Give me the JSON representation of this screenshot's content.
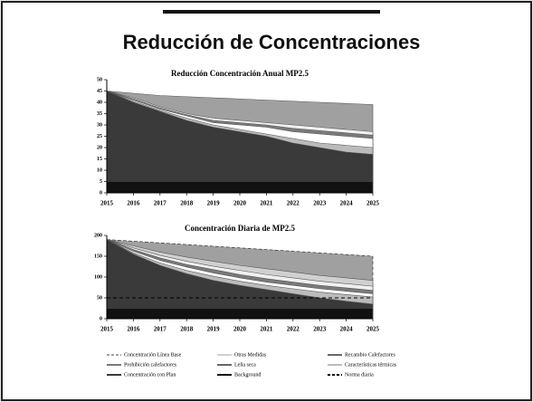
{
  "title": "Reducción de Concentraciones",
  "chart_data": [
    {
      "type": "area",
      "title": "Reducción Concentración Anual MP2.5",
      "x": [
        2015,
        2016,
        2017,
        2018,
        2019,
        2020,
        2021,
        2022,
        2023,
        2024,
        2025
      ],
      "xlim": [
        2015,
        2025
      ],
      "xticks": [
        2015,
        2016,
        2017,
        2018,
        2019,
        2020,
        2021,
        2022,
        2023,
        2024,
        2025
      ],
      "ylim": [
        0,
        50
      ],
      "yticks": [
        0,
        5,
        10,
        15,
        20,
        25,
        30,
        35,
        40,
        45,
        50
      ],
      "series": [
        {
          "color": "#a0a0a0",
          "values": [
            45,
            44,
            43,
            42.5,
            42,
            41.5,
            41,
            40.5,
            40,
            39.5,
            39
          ]
        },
        {
          "color": "#f0f0f0",
          "values": [
            45,
            42,
            38,
            35,
            33,
            32,
            31,
            30,
            29,
            28,
            27
          ]
        },
        {
          "color": "#7a7a7a",
          "values": [
            45,
            41.5,
            37.5,
            34.5,
            32,
            31,
            30,
            28.5,
            27.5,
            26.5,
            25.5
          ]
        },
        {
          "color": "#ffffff",
          "values": [
            45,
            41,
            37,
            34,
            31,
            30,
            29,
            27,
            26,
            25,
            24
          ]
        },
        {
          "color": "#bbbbbb",
          "values": [
            45,
            40.5,
            36.5,
            33,
            30,
            28,
            26,
            24,
            22,
            21,
            20
          ]
        },
        {
          "color": "#3a3a3a",
          "values": [
            45,
            40,
            36,
            32,
            29,
            27,
            25,
            22,
            20,
            18,
            17
          ]
        },
        {
          "color": "#111111",
          "values": [
            5,
            5,
            5,
            5,
            5,
            5,
            5,
            5,
            5,
            5,
            5
          ]
        }
      ]
    },
    {
      "type": "area",
      "title": "Concentración Diaria de MP2.5",
      "x": [
        2015,
        2016,
        2017,
        2018,
        2019,
        2020,
        2021,
        2022,
        2023,
        2024,
        2025
      ],
      "xlim": [
        2015,
        2025
      ],
      "xticks": [
        2015,
        2016,
        2017,
        2018,
        2019,
        2020,
        2021,
        2022,
        2023,
        2024,
        2025
      ],
      "ylim": [
        0,
        200
      ],
      "yticks": [
        0,
        50,
        100,
        150,
        200
      ],
      "series": [
        {
          "name": "Concentración Línea Base",
          "color": "#a0a0a0",
          "style": "dashed-area",
          "values": [
            190,
            186,
            182,
            178,
            174,
            170,
            166,
            162,
            158,
            154,
            150
          ]
        },
        {
          "name": "Otras Medidas",
          "color": "#d0d0d0",
          "values": [
            190,
            175,
            160,
            148,
            138,
            128,
            120,
            112,
            104,
            98,
            92
          ]
        },
        {
          "name": "Recambio Calefactores",
          "color": "#f0f0f0",
          "values": [
            190,
            170,
            152,
            138,
            126,
            116,
            106,
            98,
            90,
            84,
            78
          ]
        },
        {
          "name": "Prohibición calefactores",
          "color": "#7a7a7a",
          "values": [
            190,
            166,
            146,
            130,
            118,
            106,
            96,
            88,
            80,
            74,
            68
          ]
        },
        {
          "name": "Leña seca",
          "color": "#ffffff",
          "values": [
            190,
            162,
            140,
            124,
            110,
            98,
            88,
            80,
            72,
            66,
            60
          ]
        },
        {
          "name": "Características térmicas",
          "color": "#bbbbbb",
          "values": [
            190,
            158,
            134,
            116,
            102,
            90,
            80,
            72,
            64,
            58,
            52
          ]
        },
        {
          "name": "Concentración con Plan",
          "color": "#3a3a3a",
          "values": [
            190,
            155,
            128,
            108,
            92,
            80,
            70,
            60,
            50,
            42,
            35
          ]
        },
        {
          "name": "Background",
          "color": "#111111",
          "values": [
            25,
            25,
            25,
            25,
            25,
            25,
            25,
            25,
            25,
            25,
            25
          ]
        },
        {
          "name": "Norma diaria",
          "color": "#000000",
          "style": "dashed-line",
          "values": [
            50,
            50,
            50,
            50,
            50,
            50,
            50,
            50,
            50,
            50,
            50
          ]
        }
      ]
    }
  ]
}
